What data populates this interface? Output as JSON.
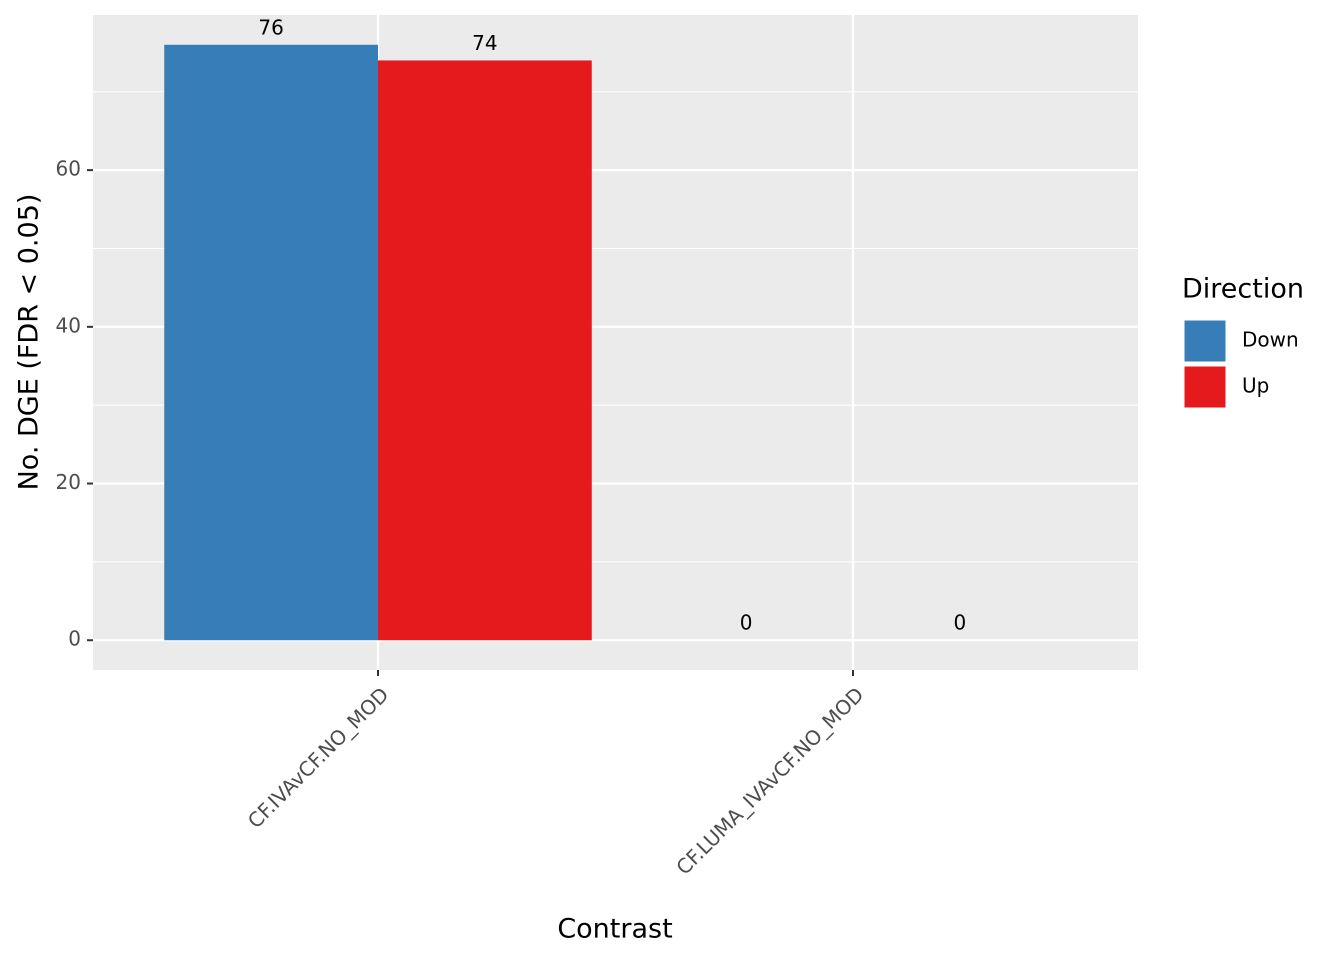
{
  "chart_data": {
    "type": "bar",
    "x_label": "Contrast",
    "y_label": "No. DGE (FDR < 0.05)",
    "categories": [
      "CF.IVAvCF.NO_MOD",
      "CF.LUMA_IVAvCF.NO_MOD"
    ],
    "series": [
      {
        "name": "Down",
        "color": "#377EB8",
        "values": [
          76,
          0
        ]
      },
      {
        "name": "Up",
        "color": "#E41A1C",
        "values": [
          74,
          0
        ]
      }
    ],
    "legend_title": "Direction",
    "ylim": [
      -3.8,
      79.8
    ],
    "yticks": [
      0,
      20,
      40,
      60
    ],
    "grid": true
  }
}
